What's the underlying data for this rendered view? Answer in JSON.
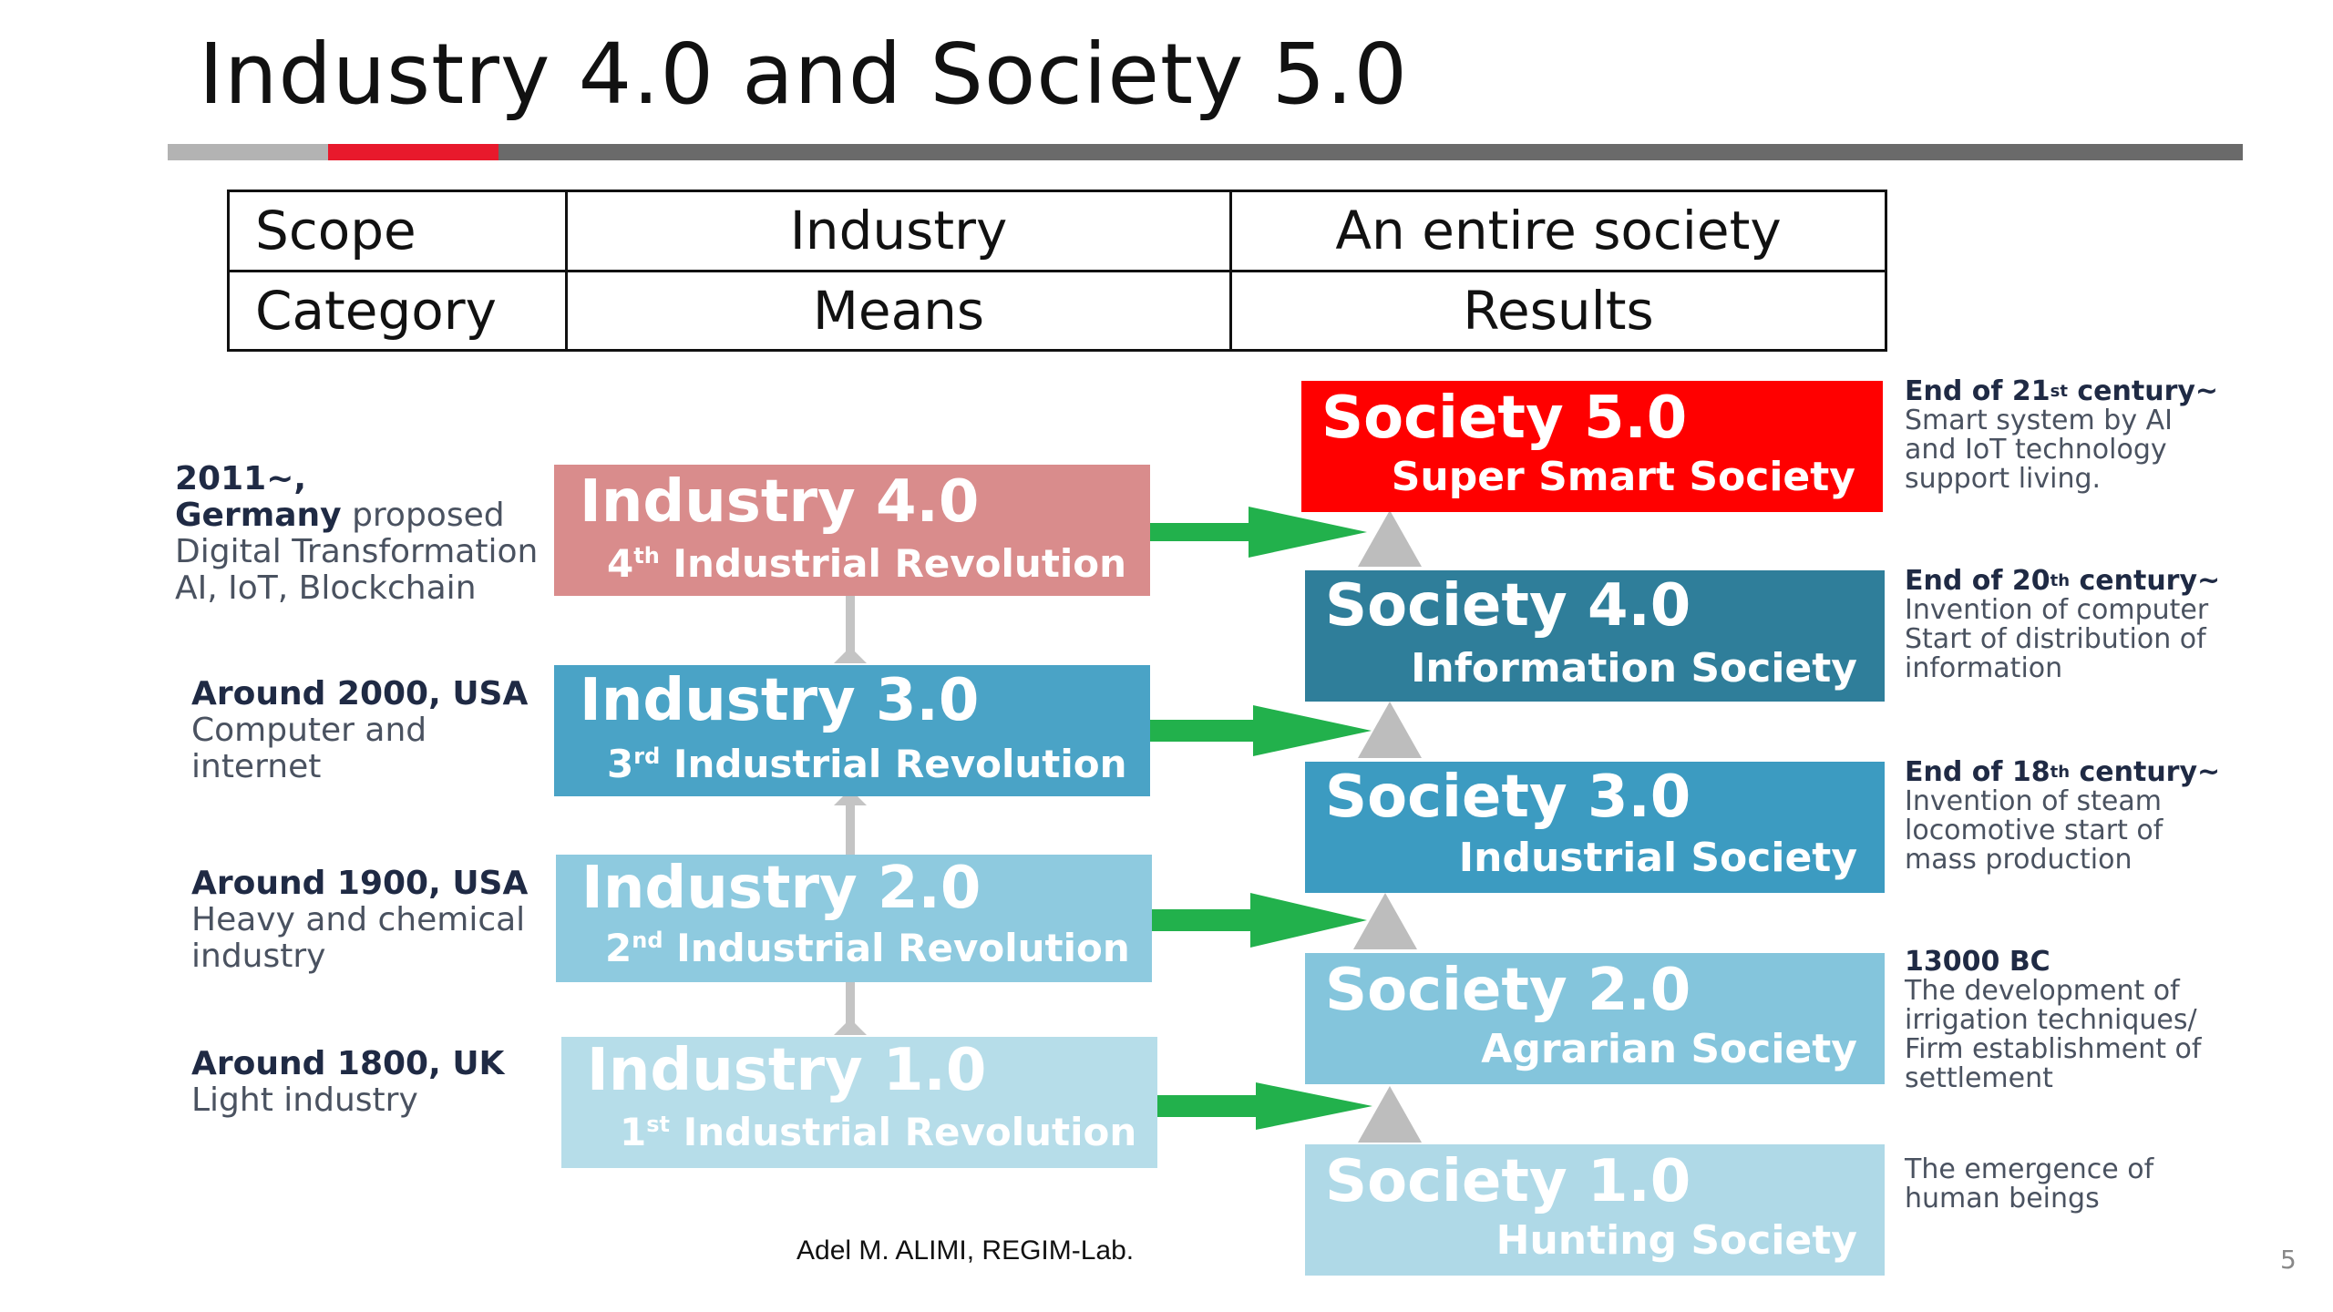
{
  "title": "Industry 4.0 and Society 5.0",
  "table": {
    "row1": [
      "Scope",
      "Industry",
      "An entire society"
    ],
    "row2": [
      "Category",
      "Means",
      "Results"
    ]
  },
  "industries": [
    {
      "title": "Industry 4.0",
      "num": "4",
      "sup": "th",
      "rev": "Industrial Revolution",
      "color": "#d98c8c"
    },
    {
      "title": "Industry 3.0",
      "num": "3",
      "sup": "rd",
      "rev": "Industrial Revolution",
      "color": "#4aa3c6"
    },
    {
      "title": "Industry 2.0",
      "num": "2",
      "sup": "nd",
      "rev": "Industrial Revolution",
      "color": "#8ecadf"
    },
    {
      "title": "Industry 1.0",
      "num": "1",
      "sup": "st",
      "rev": "Industrial Revolution",
      "color": "#b6dde9"
    }
  ],
  "industry_labels": [
    {
      "line1_bold": "2011~,",
      "line2_bold": "Germany",
      "line2_rest": " proposed",
      "line3": "Digital Transformation",
      "line4": "AI, IoT, Blockchain"
    },
    {
      "line1_bold": "Around 2000, USA",
      "line2": "Computer and",
      "line3": "internet"
    },
    {
      "line1_bold": "Around 1900, USA",
      "line2": "Heavy and chemical",
      "line3": "industry"
    },
    {
      "line1_bold": "Around 1800, UK",
      "line2": "Light industry"
    }
  ],
  "societies": [
    {
      "title": "Society 5.0",
      "subtitle": "Super Smart Society",
      "color": "#ff0000"
    },
    {
      "title": "Society 4.0",
      "subtitle": "Information Society",
      "color": "#2f7e9a"
    },
    {
      "title": "Society 3.0",
      "subtitle": "Industrial Society",
      "color": "#3c9bc1"
    },
    {
      "title": "Society 2.0",
      "subtitle": "Agrarian Society",
      "color": "#84c5dc"
    },
    {
      "title": "Society 1.0",
      "subtitle": "Hunting Society",
      "color": "#afd9e7"
    }
  ],
  "society_notes": [
    {
      "head_pre": "End of 21",
      "head_sup": "st",
      "head_post": " century~",
      "lines": [
        "Smart system by AI",
        "and IoT technology",
        "support living."
      ]
    },
    {
      "head_pre": "End of 20",
      "head_sup": "th",
      "head_post": " century~",
      "lines": [
        "Invention of computer",
        "Start of distribution of",
        "information"
      ]
    },
    {
      "head_pre": "End of 18",
      "head_sup": "th",
      "head_post": " century~",
      "lines": [
        "Invention of steam",
        "locomotive start of",
        "mass production"
      ]
    },
    {
      "head_pre": "13000 BC",
      "head_sup": "",
      "head_post": "",
      "lines": [
        "The development of",
        "irrigation techniques/",
        "Firm establishment of",
        "settlement"
      ]
    },
    {
      "head_pre": "",
      "head_sup": "",
      "head_post": "",
      "lines": [
        "The emergence of",
        "human beings"
      ]
    }
  ],
  "colors": {
    "arrow": "#22b14c",
    "connector": "#bbbbbb",
    "accent_bar": "#e8192c"
  },
  "footer": "Adel M. ALIMI, REGIM-Lab.",
  "page_number": "5"
}
